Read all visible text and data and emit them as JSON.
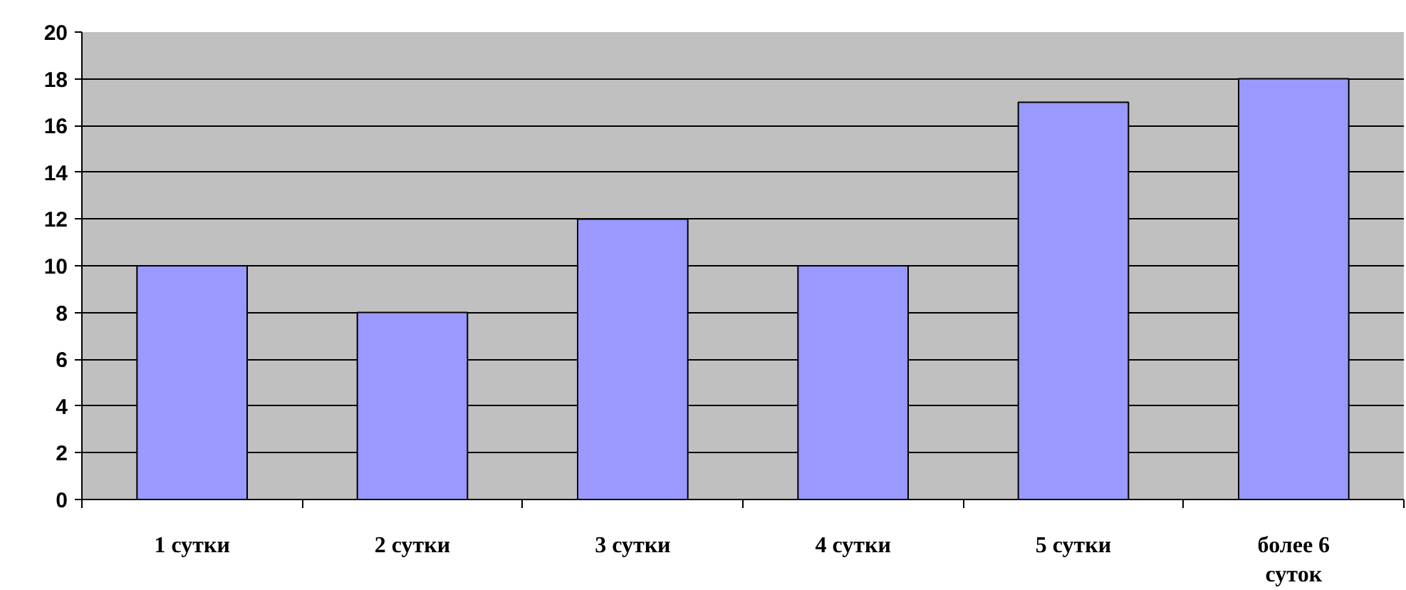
{
  "chart_data": {
    "type": "bar",
    "categories": [
      "1 сутки",
      "2 сутки",
      "3 сутки",
      "4 сутки",
      "5 сутки",
      "более 6 суток"
    ],
    "values": [
      10,
      8,
      12,
      10,
      17,
      18
    ],
    "color": "#9999ff",
    "ylim": [
      0,
      20
    ],
    "yticks": [
      0,
      2,
      4,
      6,
      8,
      10,
      12,
      14,
      16,
      18,
      20
    ],
    "grid": "y"
  }
}
